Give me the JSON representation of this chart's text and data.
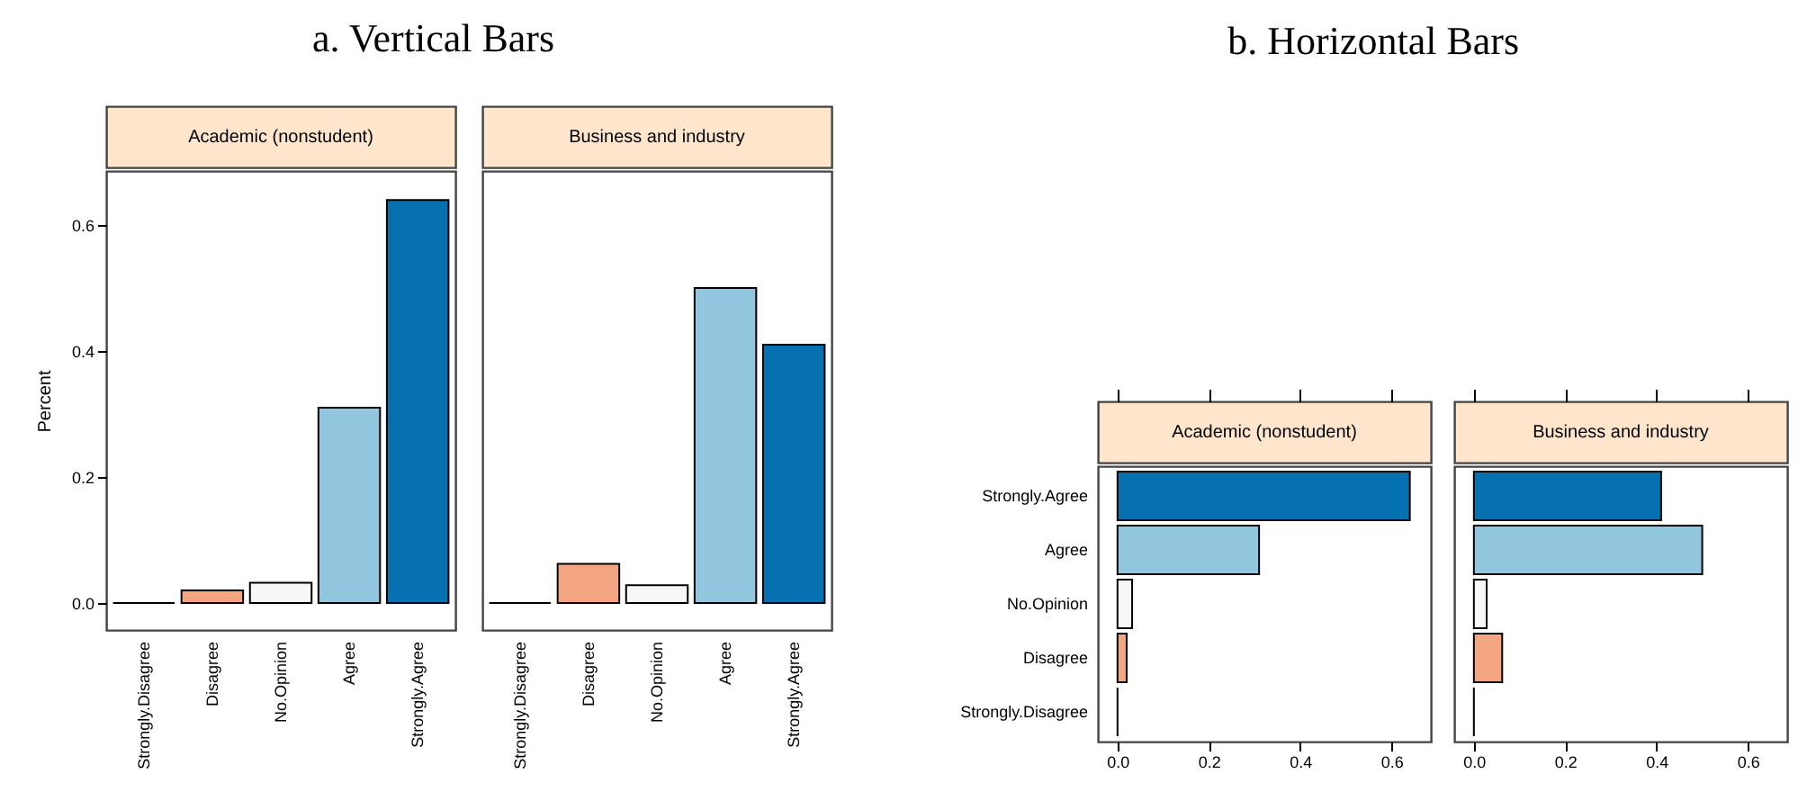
{
  "chart_data": [
    {
      "type": "bar",
      "title": "a. Vertical Bars",
      "subtitle": "Academic (nonstudent)",
      "ylabel": "Percent",
      "categories": [
        "Strongly.Disagree",
        "Disagree",
        "No.Opinion",
        "Agree",
        "Strongly.Agree"
      ],
      "values": [
        0,
        0.02,
        0.032,
        0.31,
        0.64
      ],
      "colors": [
        "#000000",
        "#f4a582",
        "#f7f7f7",
        "#92c5de",
        "#0571b0"
      ],
      "ylim": [
        -0.043,
        0.686
      ],
      "yticks": [
        {
          "value": 0,
          "label": "0.0"
        },
        {
          "value": 0.2,
          "label": "0.2"
        },
        {
          "value": 0.4,
          "label": "0.4"
        },
        {
          "value": 0.6,
          "label": "0.6"
        }
      ]
    },
    {
      "type": "bar",
      "subtitle": "Business and industry",
      "categories": [
        "Strongly.Disagree",
        "Disagree",
        "No.Opinion",
        "Agree",
        "Strongly.Agree"
      ],
      "values": [
        0,
        0.062,
        0.028,
        0.5,
        0.41
      ],
      "colors": [
        "#000000",
        "#f4a582",
        "#f7f7f7",
        "#92c5de",
        "#0571b0"
      ],
      "ylim": [
        -0.043,
        0.686
      ],
      "tick_labels": "x"
    },
    {
      "type": "bar",
      "orientation": "horizontal",
      "title": "b. Horizontal Bars",
      "subtitle": "Academic (nonstudent)",
      "categories": [
        "Strongly.Agree",
        "Agree",
        "No.Opinion",
        "Disagree",
        "Strongly.Disagree"
      ],
      "values": [
        0.64,
        0.31,
        0.032,
        0.02,
        0
      ],
      "colors": [
        "#0571b0",
        "#92c5de",
        "#f7f7f7",
        "#f4a582",
        "#000000"
      ],
      "xlim": [
        -0.043,
        0.686
      ],
      "xticks": [
        {
          "value": 0,
          "label": "0.0"
        },
        {
          "value": 0.2,
          "label": "0.2"
        },
        {
          "value": 0.4,
          "label": "0.4"
        },
        {
          "value": 0.6,
          "label": "0.6"
        }
      ]
    },
    {
      "type": "bar",
      "orientation": "horizontal",
      "subtitle": "Business and industry",
      "categories": [
        null,
        null,
        null,
        null,
        null
      ],
      "values": [
        0.41,
        0.5,
        0.028,
        0.062,
        0
      ],
      "colors": [
        "#0571b0",
        "#92c5de",
        "#f7f7f7",
        "#f4a582",
        "#000000"
      ],
      "xlim": [
        -0.043,
        0.686
      ],
      "xticks": [
        {
          "value": 0,
          "label": "0.0"
        },
        {
          "value": 0.2,
          "label": "0.2"
        },
        {
          "value": 0.4,
          "label": "0.4"
        },
        {
          "value": 0.6,
          "label": "0.6"
        }
      ],
      "tick_labels": "x"
    }
  ]
}
